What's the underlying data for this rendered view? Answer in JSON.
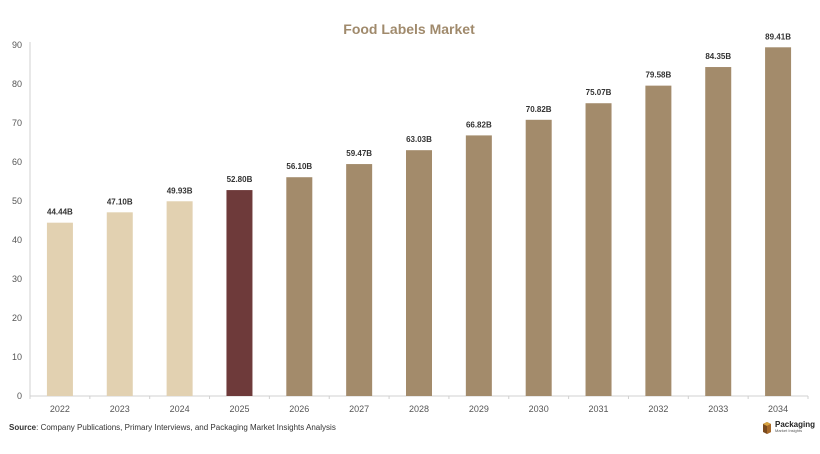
{
  "chart_data": {
    "type": "bar",
    "title": "Food Labels Market",
    "categories": [
      "2022",
      "2023",
      "2024",
      "2025",
      "2026",
      "2027",
      "2028",
      "2029",
      "2030",
      "2031",
      "2032",
      "2033",
      "2034"
    ],
    "values": [
      44.44,
      47.1,
      49.93,
      52.8,
      56.1,
      59.47,
      63.03,
      66.82,
      70.82,
      75.07,
      79.58,
      84.35,
      89.41
    ],
    "data_labels": [
      "44.44B",
      "47.10B",
      "49.93B",
      "52.80B",
      "56.10B",
      "59.47B",
      "63.03B",
      "66.82B",
      "70.82B",
      "75.07B",
      "79.58B",
      "84.35B",
      "89.41B"
    ],
    "bar_colors": [
      "#e2d1b1",
      "#e2d1b1",
      "#e2d1b1",
      "#6e3a3a",
      "#a38b6b",
      "#a38b6b",
      "#a38b6b",
      "#a38b6b",
      "#a38b6b",
      "#a38b6b",
      "#a38b6b",
      "#a38b6b",
      "#a38b6b"
    ],
    "yticks": [
      0,
      10,
      20,
      30,
      40,
      50,
      60,
      70,
      80,
      90
    ],
    "ylim": [
      0,
      90
    ],
    "xlabel": "",
    "ylabel": "",
    "grid": false,
    "legend": "none"
  },
  "source": {
    "label": "Source",
    "text": ": Company Publications, Primary Interviews, and Packaging Market Insights Analysis"
  },
  "logo": {
    "main": "Packaging",
    "sub": "Market Insights"
  },
  "colors": {
    "title": "#a08a6c",
    "axis": "#d0d0d0"
  }
}
